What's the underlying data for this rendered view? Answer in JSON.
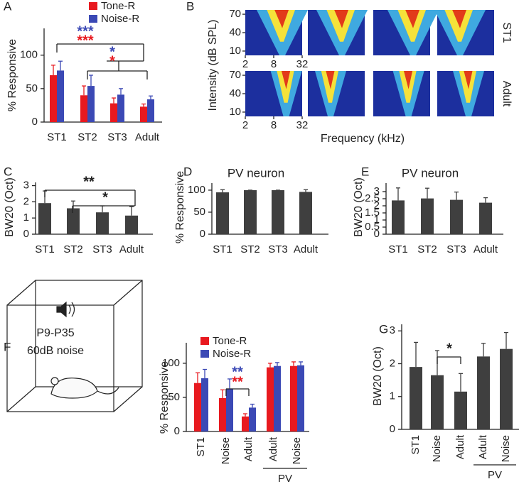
{
  "chart_data": [
    {
      "type": "bar",
      "panel": "A",
      "ylabel": "% Responsive",
      "categories": [
        "ST1",
        "ST2",
        "ST3",
        "Adult"
      ],
      "series": [
        {
          "name": "Tone-R",
          "color": "#e8191f",
          "values": [
            70,
            40,
            28,
            23
          ],
          "errors": [
            15,
            14,
            8,
            4
          ]
        },
        {
          "name": "Noise-R",
          "color": "#3b49b5",
          "values": [
            77,
            54,
            41,
            34
          ],
          "errors": [
            14,
            16,
            9,
            5
          ]
        }
      ],
      "ylim": [
        0,
        140
      ],
      "yticks": [
        0,
        50,
        100
      ],
      "annotations": [
        {
          "text": "***",
          "color": "#3b49b5"
        },
        {
          "text": "***",
          "color": "#e8191f"
        },
        {
          "text": "*",
          "color": "#3b49b5"
        },
        {
          "text": "*",
          "color": "#e8191f"
        }
      ]
    },
    {
      "type": "heatmap",
      "panel": "B",
      "ylabel": "Intensity (dB SPL)",
      "xlabel": "Frequency (kHz)",
      "rows": [
        "ST1",
        "Adult"
      ],
      "xticks": [
        2,
        8,
        32
      ],
      "xlim": [
        2,
        32
      ],
      "xscale": "log",
      "yticks": [
        10,
        40,
        70
      ],
      "ylim": [
        3,
        77
      ]
    },
    {
      "type": "bar",
      "panel": "C",
      "ylabel": "BW20 (Oct)",
      "categories": [
        "ST1",
        "ST2",
        "ST3",
        "Adult"
      ],
      "values": [
        1.92,
        1.6,
        1.35,
        1.15
      ],
      "errors": [
        0.75,
        0.45,
        0.4,
        0.55
      ],
      "color": "#3f3f3f",
      "ylim": [
        0,
        3.2
      ],
      "yticks": [
        0,
        1,
        2,
        3
      ],
      "annotations": [
        {
          "text": "**",
          "color": "#222222"
        },
        {
          "text": "*",
          "color": "#222222"
        }
      ]
    },
    {
      "type": "bar",
      "panel": "D",
      "title": "PV neuron",
      "ylabel": "% Responsive",
      "categories": [
        "ST1",
        "ST2",
        "ST3",
        "Adult"
      ],
      "values": [
        95,
        100,
        100,
        96
      ],
      "errors": [
        6,
        0,
        0,
        5
      ],
      "color": "#3f3f3f",
      "ylim": [
        0,
        116
      ],
      "yticks": [
        0,
        50,
        100
      ]
    },
    {
      "type": "bar",
      "panel": "E",
      "title": "PV neuron",
      "ylabel": "BW20 (Oct)",
      "categories": [
        "ST1",
        "ST2",
        "ST3",
        "Adult"
      ],
      "values": [
        2.38,
        2.52,
        2.42,
        2.22
      ],
      "errors": [
        0.88,
        0.72,
        0.55,
        0.35
      ],
      "color": "#3f3f3f",
      "ylim": [
        0,
        3.6
      ],
      "yticks": [
        0,
        0.5,
        1,
        1.5,
        2,
        2.5,
        3
      ]
    },
    {
      "type": "bar",
      "panel": "F",
      "inset_text": [
        "P9-P35",
        "60dB noise"
      ],
      "ylabel": "% Responsive",
      "categories": [
        "ST1",
        "Noise",
        "Adult",
        "Adult",
        "Noise"
      ],
      "group_label": "PV",
      "series": [
        {
          "name": "Tone-R",
          "color": "#e8191f",
          "values": [
            71,
            49,
            22,
            94,
            96
          ],
          "errors": [
            15,
            12,
            4,
            6,
            6
          ]
        },
        {
          "name": "Noise-R",
          "color": "#3b49b5",
          "values": [
            78,
            63,
            35,
            96,
            97
          ],
          "errors": [
            13,
            14,
            5,
            5,
            5
          ]
        }
      ],
      "ylim": [
        0,
        130
      ],
      "yticks": [
        0,
        50,
        100
      ],
      "annotations": [
        {
          "text": "**",
          "color": "#3b49b5"
        },
        {
          "text": "**",
          "color": "#e8191f"
        }
      ]
    },
    {
      "type": "bar",
      "panel": "G",
      "ylabel": "BW20 (Oct)",
      "categories": [
        "ST1",
        "Noise",
        "Adult",
        "Adult",
        "Noise"
      ],
      "group_label": "PV",
      "values": [
        1.9,
        1.65,
        1.15,
        2.22,
        2.45
      ],
      "errors": [
        0.75,
        0.75,
        0.55,
        0.4,
        0.5
      ],
      "color": "#3f3f3f",
      "ylim": [
        0,
        3.2
      ],
      "yticks": [
        0,
        1,
        2,
        3
      ],
      "annotations": [
        {
          "text": "*",
          "color": "#222222"
        }
      ]
    }
  ]
}
